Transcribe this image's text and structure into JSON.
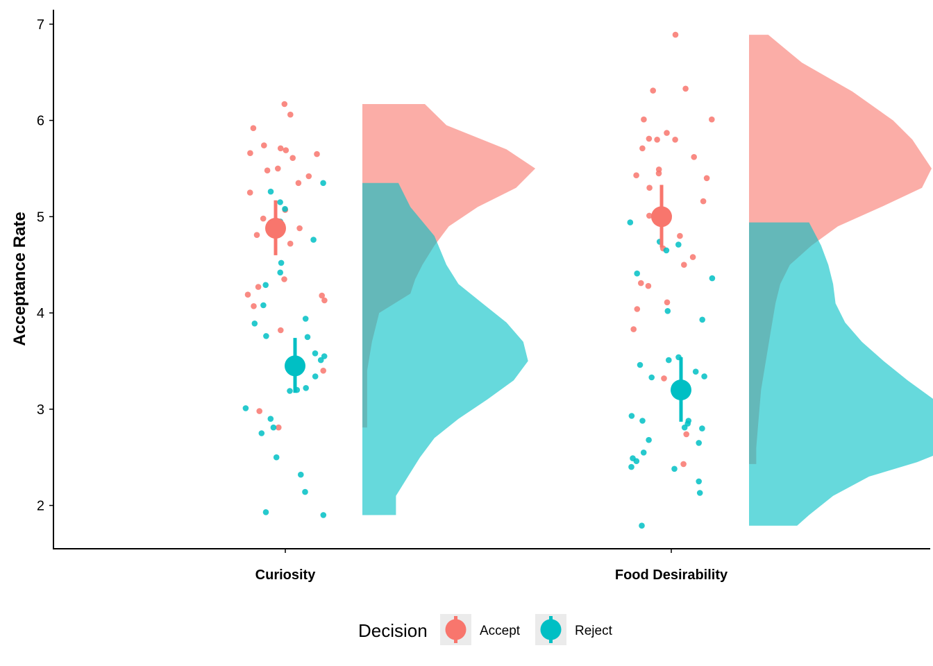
{
  "chart_data": {
    "type": "raincloud",
    "xlabel": "",
    "ylabel": "Acceptance Rate",
    "ylim": [
      1.55,
      7.15
    ],
    "yticks": [
      2,
      3,
      4,
      5,
      6,
      7
    ],
    "categories": [
      "Curiosity",
      "Food Desirability"
    ],
    "grid": false,
    "legend": {
      "title": "Decision",
      "position": "bottom"
    },
    "series": [
      {
        "name": "Accept",
        "color": "#F8766D",
        "summary": [
          {
            "category": "Curiosity",
            "mean": 4.88,
            "lower": 4.6,
            "upper": 5.17
          },
          {
            "category": "Food Desirability",
            "mean": 5.0,
            "lower": 4.68,
            "upper": 5.33
          }
        ],
        "points": [
          {
            "category": "Curiosity",
            "values": [
              6.17,
              6.06,
              5.92,
              5.74,
              5.71,
              5.69,
              5.66,
              5.65,
              5.61,
              5.5,
              5.48,
              5.42,
              5.35,
              5.25,
              5.07,
              4.98,
              4.88,
              4.81,
              4.72,
              4.35,
              4.27,
              4.19,
              4.18,
              4.13,
              4.07,
              3.82,
              3.4,
              2.98,
              2.81
            ]
          },
          {
            "category": "Food Desirability",
            "values": [
              6.89,
              6.33,
              6.31,
              6.01,
              6.01,
              5.87,
              5.81,
              5.8,
              5.8,
              5.71,
              5.62,
              5.49,
              5.45,
              5.43,
              5.4,
              5.3,
              5.16,
              5.01,
              5.01,
              4.8,
              4.67,
              4.58,
              4.5,
              4.31,
              4.28,
              4.11,
              4.04,
              3.83,
              3.32,
              2.74,
              2.43
            ]
          }
        ]
      },
      {
        "name": "Reject",
        "color": "#00BFC4",
        "summary": [
          {
            "category": "Curiosity",
            "mean": 3.45,
            "lower": 3.17,
            "upper": 3.74
          },
          {
            "category": "Food Desirability",
            "mean": 3.2,
            "lower": 2.87,
            "upper": 3.54
          }
        ],
        "points": [
          {
            "category": "Curiosity",
            "values": [
              5.35,
              5.26,
              5.15,
              5.08,
              4.95,
              4.76,
              4.52,
              4.42,
              4.29,
              4.08,
              3.94,
              3.89,
              3.76,
              3.75,
              3.58,
              3.55,
              3.51,
              3.34,
              3.22,
              3.2,
              3.19,
              3.01,
              2.9,
              2.81,
              2.75,
              2.5,
              2.32,
              2.14,
              1.93,
              1.9
            ]
          },
          {
            "category": "Food Desirability",
            "values": [
              4.94,
              4.74,
              4.71,
              4.65,
              4.41,
              4.36,
              4.02,
              3.93,
              3.54,
              3.51,
              3.46,
              3.39,
              3.34,
              3.33,
              2.93,
              2.88,
              2.88,
              2.85,
              2.81,
              2.8,
              2.68,
              2.65,
              2.55,
              2.49,
              2.46,
              2.4,
              2.38,
              2.25,
              2.13,
              1.79
            ]
          }
        ]
      }
    ],
    "density": [
      {
        "category": "Curiosity",
        "series": "Accept",
        "range": [
          2.81,
          6.17
        ],
        "profile": [
          [
            6.17,
            0.26
          ],
          [
            5.95,
            0.35
          ],
          [
            5.7,
            0.6
          ],
          [
            5.5,
            0.72
          ],
          [
            5.3,
            0.64
          ],
          [
            5.1,
            0.48
          ],
          [
            4.9,
            0.36
          ],
          [
            4.7,
            0.3
          ],
          [
            4.5,
            0.25
          ],
          [
            4.35,
            0.22
          ],
          [
            4.2,
            0.2
          ],
          [
            4.0,
            0.07
          ],
          [
            3.7,
            0.04
          ],
          [
            3.4,
            0.02
          ],
          [
            3.1,
            0.02
          ],
          [
            2.81,
            0.02
          ]
        ]
      },
      {
        "category": "Curiosity",
        "series": "Reject",
        "range": [
          1.9,
          5.35
        ],
        "profile": [
          [
            5.35,
            0.15
          ],
          [
            5.1,
            0.2
          ],
          [
            4.8,
            0.3
          ],
          [
            4.5,
            0.35
          ],
          [
            4.3,
            0.4
          ],
          [
            4.1,
            0.5
          ],
          [
            3.9,
            0.6
          ],
          [
            3.7,
            0.67
          ],
          [
            3.5,
            0.69
          ],
          [
            3.3,
            0.63
          ],
          [
            3.1,
            0.52
          ],
          [
            2.9,
            0.4
          ],
          [
            2.7,
            0.3
          ],
          [
            2.5,
            0.24
          ],
          [
            2.3,
            0.19
          ],
          [
            2.1,
            0.14
          ],
          [
            1.9,
            0.14
          ]
        ]
      },
      {
        "category": "Food Desirability",
        "series": "Accept",
        "range": [
          2.43,
          6.89
        ],
        "profile": [
          [
            6.89,
            0.08
          ],
          [
            6.6,
            0.22
          ],
          [
            6.3,
            0.43
          ],
          [
            6.0,
            0.6
          ],
          [
            5.8,
            0.68
          ],
          [
            5.5,
            0.76
          ],
          [
            5.3,
            0.72
          ],
          [
            5.1,
            0.55
          ],
          [
            4.9,
            0.37
          ],
          [
            4.7,
            0.26
          ],
          [
            4.5,
            0.17
          ],
          [
            4.3,
            0.13
          ],
          [
            4.1,
            0.11
          ],
          [
            3.8,
            0.09
          ],
          [
            3.5,
            0.07
          ],
          [
            3.2,
            0.05
          ],
          [
            2.9,
            0.04
          ],
          [
            2.6,
            0.03
          ],
          [
            2.43,
            0.03
          ]
        ]
      },
      {
        "category": "Food Desirability",
        "series": "Reject",
        "range": [
          1.79,
          4.94
        ],
        "profile": [
          [
            4.94,
            0.25
          ],
          [
            4.7,
            0.3
          ],
          [
            4.5,
            0.33
          ],
          [
            4.3,
            0.35
          ],
          [
            4.1,
            0.36
          ],
          [
            3.9,
            0.4
          ],
          [
            3.7,
            0.47
          ],
          [
            3.5,
            0.56
          ],
          [
            3.3,
            0.66
          ],
          [
            3.1,
            0.77
          ],
          [
            2.9,
            0.85
          ],
          [
            2.75,
            0.9
          ],
          [
            2.6,
            0.85
          ],
          [
            2.45,
            0.7
          ],
          [
            2.3,
            0.5
          ],
          [
            2.1,
            0.35
          ],
          [
            1.9,
            0.25
          ],
          [
            1.79,
            0.2
          ]
        ]
      }
    ]
  }
}
